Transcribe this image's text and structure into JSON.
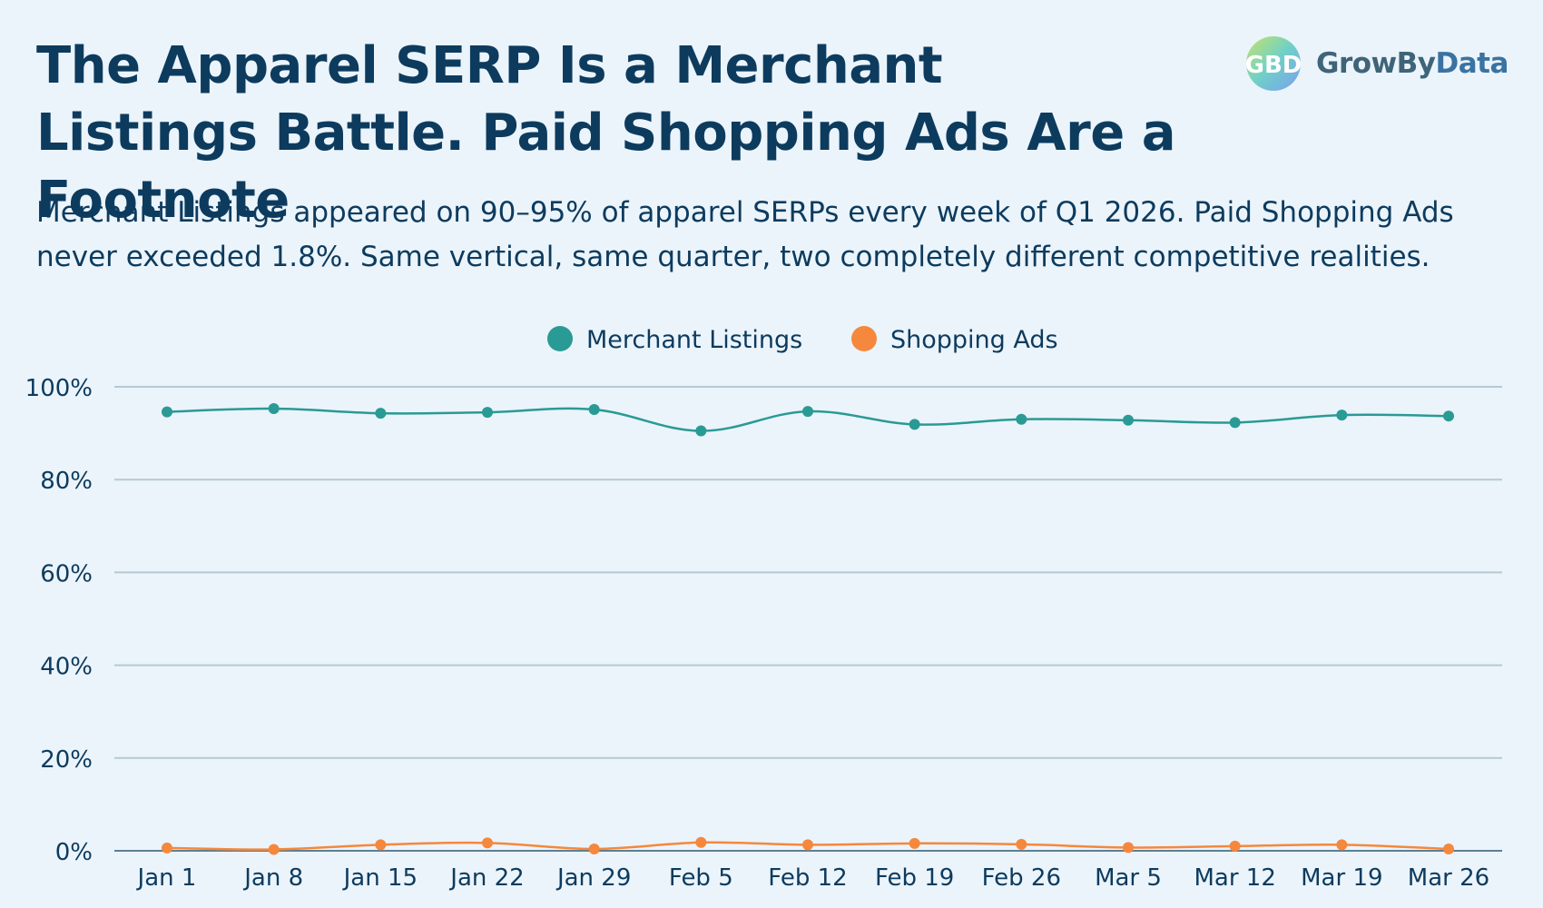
{
  "title_line1": "The Apparel SERP Is a Merchant",
  "title_line2": "Listings Battle. Paid Shopping Ads Are a Footnote",
  "subtitle_line1": "Merchant Listings appeared on 90–95% of apparel SERPs every week of Q1 2026. Paid Shopping Ads",
  "subtitle_line2": "never exceeded 1.8%. Same vertical, same quarter, two completely different competitive realities.",
  "logo": {
    "mark": "GBD",
    "text_grow": "Grow",
    "text_by": "By",
    "text_data": "Data",
    "icon": "growbydata-logo-icon"
  },
  "colors": {
    "background": "#ebf4fb",
    "title": "#0d3b5e",
    "merchant": "#2a9a94",
    "shopping": "#f5883d",
    "grid": "#b5c9d3"
  },
  "chart_data": {
    "type": "line",
    "title": "",
    "xlabel": "",
    "ylabel": "",
    "categories": [
      "Jan 1",
      "Jan 8",
      "Jan 15",
      "Jan 22",
      "Jan 29",
      "Feb 5",
      "Feb 12",
      "Feb 19",
      "Feb 26",
      "Mar 5",
      "Mar 12",
      "Mar 19",
      "Mar 26"
    ],
    "series": [
      {
        "name": "Merchant Listings",
        "color": "#2a9a94",
        "values": [
          94.6,
          95.3,
          94.3,
          94.5,
          95.1,
          90.5,
          94.7,
          91.9,
          93.0,
          92.8,
          92.3,
          93.9,
          93.7
        ]
      },
      {
        "name": "Shopping Ads",
        "color": "#f5883d",
        "values": [
          0.6,
          0.3,
          1.3,
          1.7,
          0.4,
          1.8,
          1.3,
          1.6,
          1.4,
          0.7,
          1.0,
          1.3,
          0.4
        ]
      }
    ],
    "ylim": [
      0,
      100
    ],
    "yticks": [
      "0%",
      "20%",
      "40%",
      "60%",
      "80%",
      "100%"
    ],
    "grid": true,
    "legend": "top-center"
  }
}
